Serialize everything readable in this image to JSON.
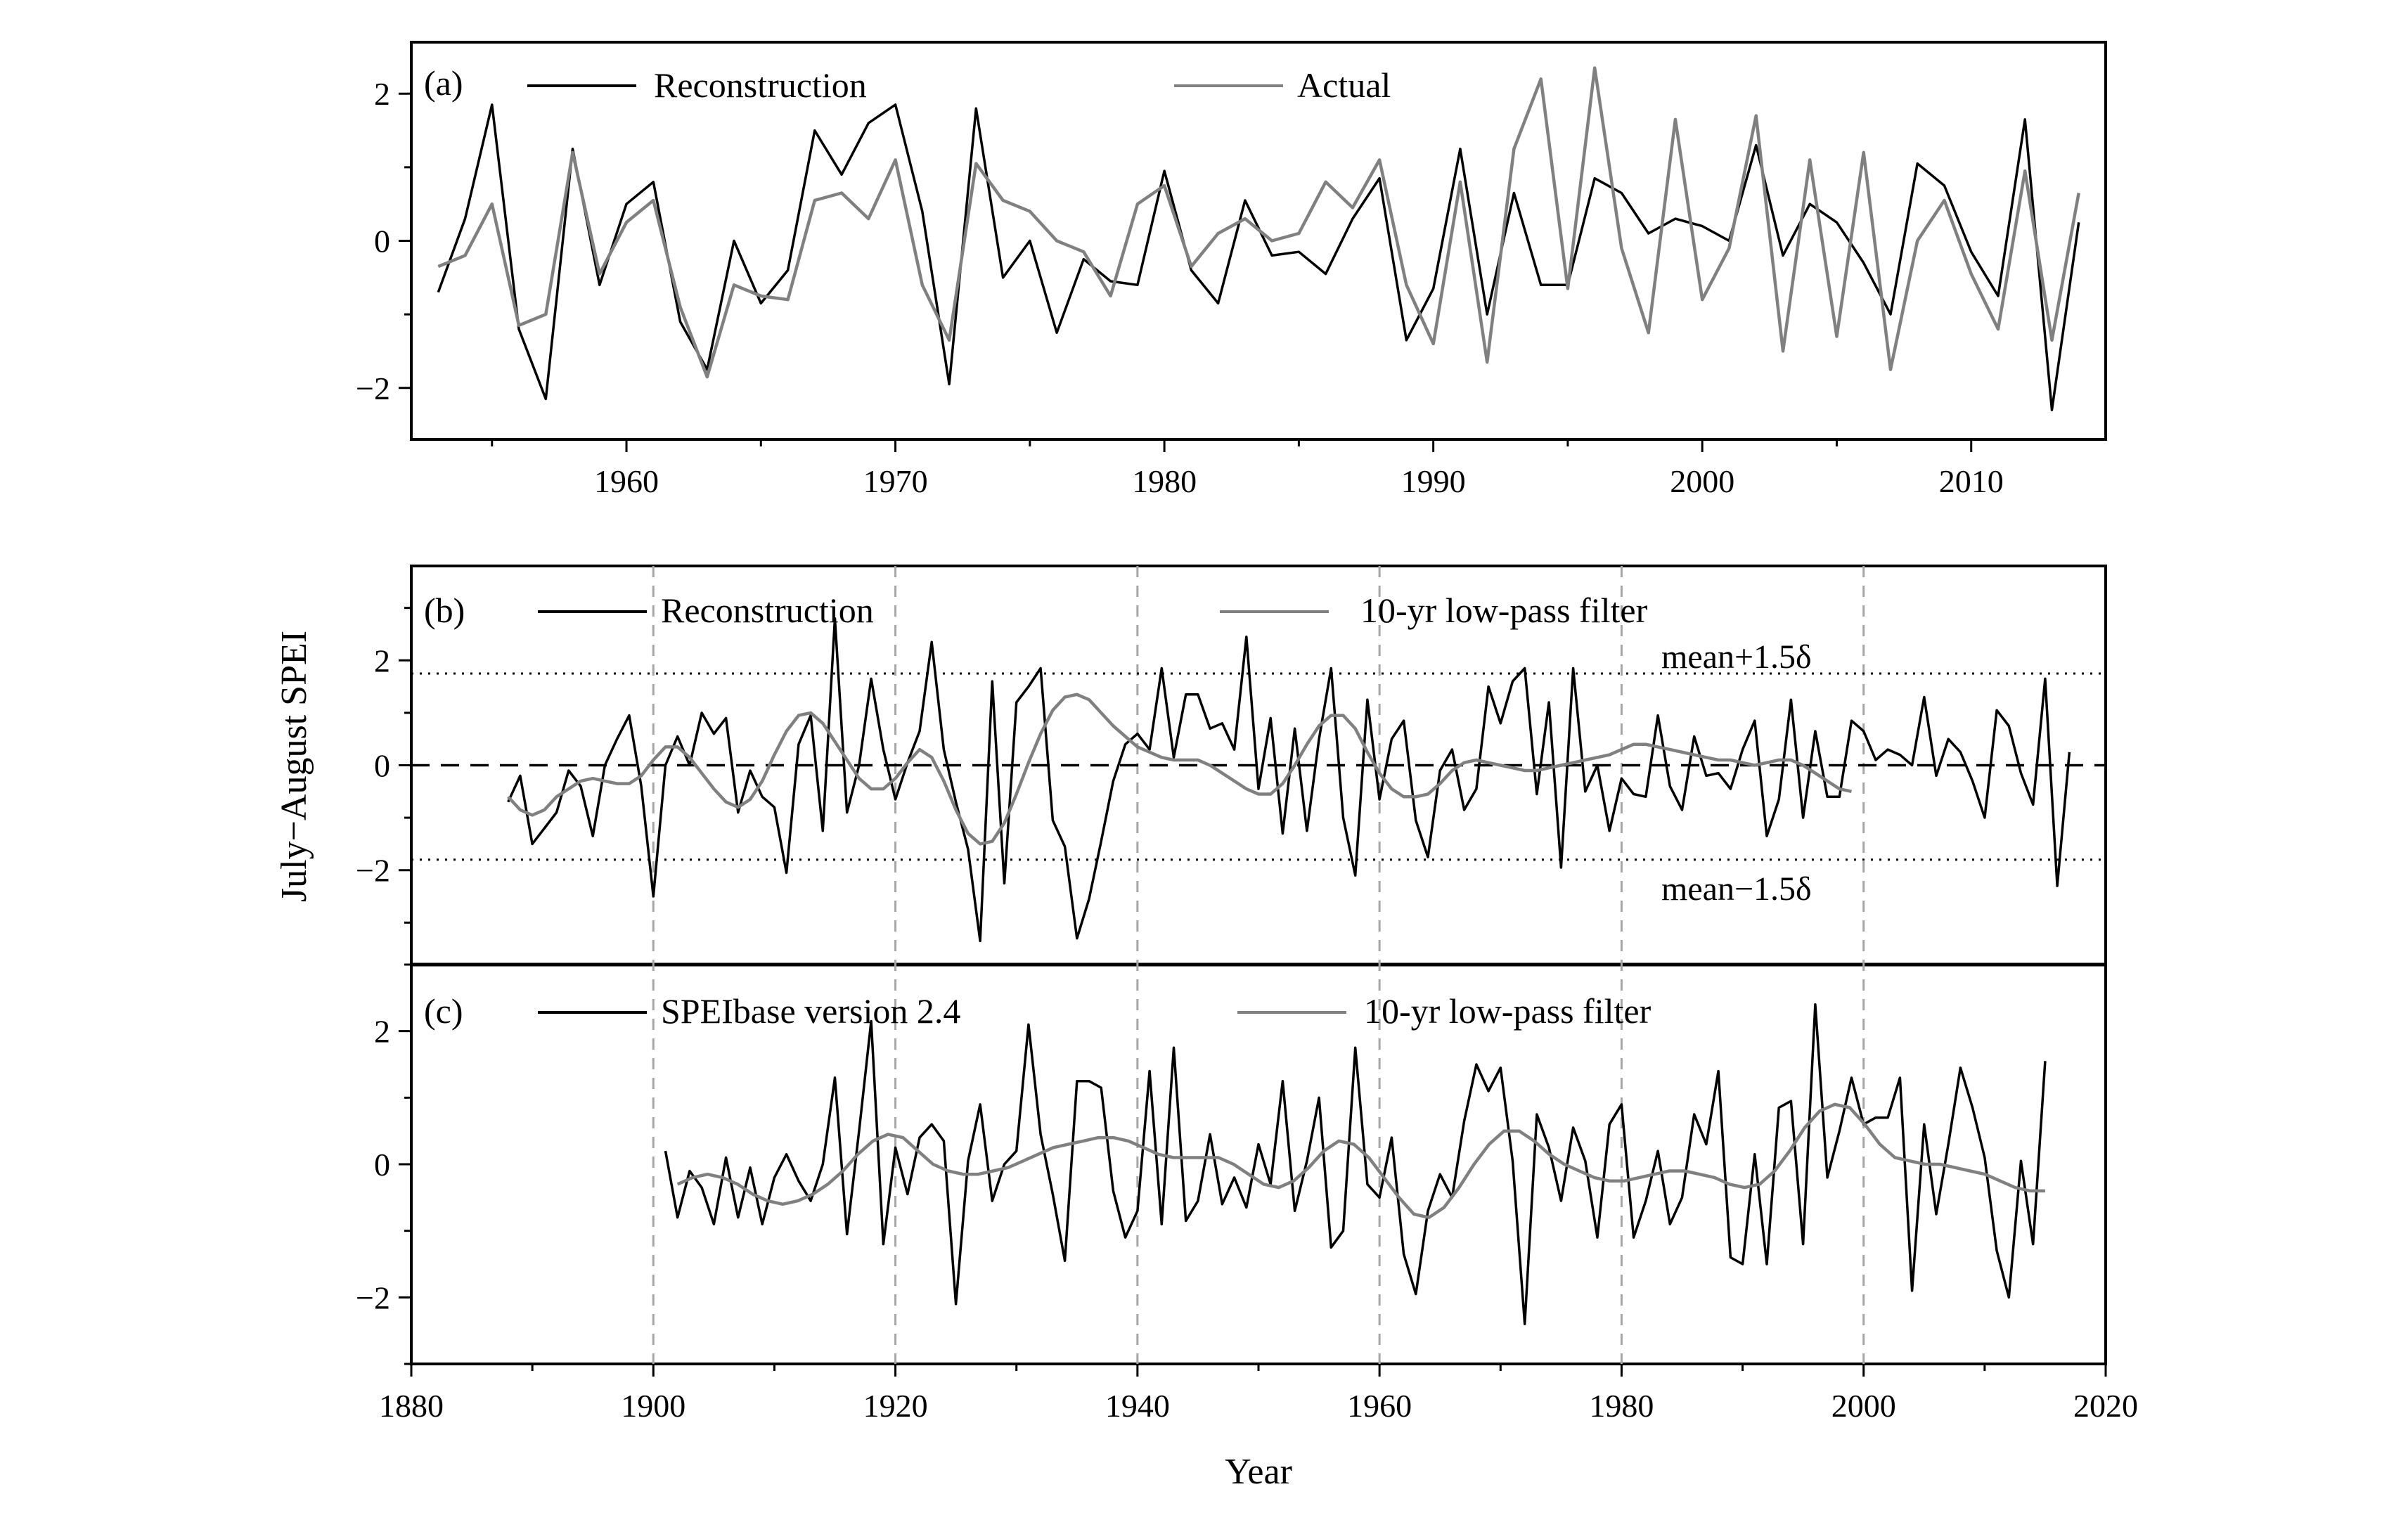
{
  "figure": {
    "ylabel": "July−August SPEI",
    "xlabel": "Year",
    "colors": {
      "black": "#000000",
      "gray": "#808080",
      "grid": "#a6a6a6"
    }
  },
  "chart_data": [
    {
      "type": "line",
      "panel": "(a)",
      "xlim": [
        1952,
        2015
      ],
      "ylim": [
        -2.7,
        2.7
      ],
      "xticks": [
        1960,
        1970,
        1980,
        1990,
        2000,
        2010
      ],
      "yticks": [
        -2,
        0,
        2
      ],
      "x": [
        1953,
        1954,
        1955,
        1956,
        1957,
        1958,
        1959,
        1960,
        1961,
        1962,
        1963,
        1964,
        1965,
        1966,
        1967,
        1968,
        1969,
        1970,
        1971,
        1972,
        1973,
        1974,
        1975,
        1976,
        1977,
        1978,
        1979,
        1980,
        1981,
        1982,
        1983,
        1984,
        1985,
        1986,
        1987,
        1988,
        1989,
        1990,
        1991,
        1992,
        1993,
        1994,
        1995,
        1996,
        1997,
        1998,
        1999,
        2000,
        2001,
        2002,
        2003,
        2004,
        2005,
        2006,
        2007,
        2008,
        2009,
        2010,
        2011,
        2012,
        2013,
        2014
      ],
      "series": [
        {
          "name": "Reconstruction",
          "color": "#000000",
          "values": [
            -0.7,
            0.3,
            1.85,
            -1.2,
            -2.15,
            1.25,
            -0.6,
            0.5,
            0.8,
            -1.1,
            -1.75,
            0.0,
            -0.85,
            -0.4,
            1.5,
            0.9,
            1.6,
            1.85,
            0.4,
            -1.95,
            1.8,
            -0.5,
            0.0,
            -1.25,
            -0.25,
            -0.55,
            -0.6,
            0.95,
            -0.4,
            -0.85,
            0.55,
            -0.2,
            -0.15,
            -0.45,
            0.3,
            0.85,
            -1.35,
            -0.65,
            1.25,
            -1.0,
            0.65,
            -0.6,
            -0.6,
            0.85,
            0.65,
            0.1,
            0.3,
            0.2,
            0.0,
            1.3,
            -0.2,
            0.5,
            0.25,
            -0.3,
            -1.0,
            1.05,
            0.75,
            -0.15,
            -0.75,
            1.65,
            -2.3,
            0.25
          ]
        },
        {
          "name": "Actual",
          "color": "#808080",
          "values": [
            -0.35,
            -0.2,
            0.5,
            -1.15,
            -1.0,
            1.2,
            -0.45,
            0.25,
            0.55,
            -0.9,
            -1.85,
            -0.6,
            -0.75,
            -0.8,
            0.55,
            0.65,
            0.3,
            1.1,
            -0.6,
            -1.35,
            1.05,
            0.55,
            0.4,
            0.0,
            -0.15,
            -0.75,
            0.5,
            0.75,
            -0.35,
            0.1,
            0.3,
            0.0,
            0.1,
            0.8,
            0.45,
            1.1,
            -0.6,
            -1.4,
            0.8,
            -1.65,
            1.25,
            2.2,
            -0.65,
            2.35,
            -0.1,
            -1.25,
            1.65,
            -0.8,
            -0.1,
            1.7,
            -1.5,
            1.1,
            -1.3,
            1.2,
            -1.75,
            0.0,
            0.55,
            -0.45,
            -1.2,
            0.95,
            -1.35,
            0.65
          ]
        }
      ],
      "legend": [
        "Reconstruction",
        "Actual"
      ]
    },
    {
      "type": "line",
      "panel": "(b)",
      "xlim": [
        1880,
        2020
      ],
      "ylim": [
        -3.8,
        3.8
      ],
      "yticks": [
        -2,
        0,
        2
      ],
      "x_start": 1888,
      "series": [
        {
          "name": "Reconstruction",
          "color": "#000000",
          "values": [
            -0.7,
            -0.2,
            -1.5,
            -1.2,
            -0.9,
            -0.1,
            -0.4,
            -1.35,
            0.0,
            0.5,
            0.95,
            -0.4,
            -2.5,
            0.0,
            0.55,
            0.0,
            1.0,
            0.6,
            0.9,
            -0.9,
            -0.1,
            -0.6,
            -0.8,
            -2.05,
            0.4,
            0.95,
            -1.25,
            2.8,
            -0.9,
            0.0,
            1.65,
            0.3,
            -0.65,
            0.05,
            0.65,
            2.35,
            0.3,
            -0.7,
            -1.6,
            -3.35,
            1.6,
            -2.25,
            1.2,
            1.5,
            1.85,
            -1.05,
            -1.55,
            -3.3,
            -2.55,
            -1.45,
            -0.3,
            0.4,
            0.6,
            0.3,
            1.85,
            0.15,
            1.35,
            1.35,
            0.7,
            0.8,
            0.3,
            2.45,
            -0.45,
            0.9,
            -1.3,
            0.7,
            -1.25,
            0.5,
            1.85,
            -1.0,
            -2.1,
            1.25,
            -0.65,
            0.5,
            0.85,
            -1.05,
            -1.75,
            -0.1,
            0.3,
            -0.85,
            -0.45,
            1.5,
            0.8,
            1.6,
            1.85,
            -0.55,
            1.2,
            -1.95,
            1.85,
            -0.5,
            0.0,
            -1.25,
            -0.25,
            -0.55,
            -0.6,
            0.95,
            -0.4,
            -0.85,
            0.55,
            -0.2,
            -0.15,
            -0.45,
            0.3,
            0.85,
            -1.35,
            -0.65,
            1.25,
            -1.0,
            0.65,
            -0.6,
            -0.6,
            0.85,
            0.65,
            0.1,
            0.3,
            0.2,
            0.0,
            1.3,
            -0.2,
            0.5,
            0.25,
            -0.3,
            -1.0,
            1.05,
            0.75,
            -0.15,
            -0.75,
            1.65,
            -2.3,
            0.25
          ]
        },
        {
          "name": "10-yr low-pass filter",
          "color": "#808080",
          "values": [
            -0.6,
            -0.85,
            -0.95,
            -0.85,
            -0.6,
            -0.45,
            -0.3,
            -0.25,
            -0.3,
            -0.35,
            -0.35,
            -0.2,
            0.1,
            0.35,
            0.35,
            0.15,
            -0.15,
            -0.45,
            -0.7,
            -0.8,
            -0.65,
            -0.3,
            0.2,
            0.65,
            0.95,
            1.0,
            0.8,
            0.45,
            0.1,
            -0.25,
            -0.45,
            -0.45,
            -0.25,
            0.05,
            0.3,
            0.15,
            -0.3,
            -0.85,
            -1.3,
            -1.5,
            -1.45,
            -1.1,
            -0.55,
            0.05,
            0.6,
            1.05,
            1.3,
            1.35,
            1.25,
            1.0,
            0.75,
            0.55,
            0.35,
            0.25,
            0.15,
            0.1,
            0.1,
            0.1,
            0.0,
            -0.15,
            -0.3,
            -0.45,
            -0.55,
            -0.55,
            -0.35,
            0.0,
            0.4,
            0.75,
            0.95,
            0.95,
            0.7,
            0.25,
            -0.15,
            -0.45,
            -0.6,
            -0.6,
            -0.55,
            -0.35,
            -0.1,
            0.05,
            0.1,
            0.05,
            0.0,
            -0.05,
            -0.1,
            -0.1,
            -0.05,
            0.0,
            0.05,
            0.1,
            0.15,
            0.2,
            0.3,
            0.4,
            0.4,
            0.35,
            0.3,
            0.25,
            0.2,
            0.15,
            0.1,
            0.1,
            0.05,
            0.0,
            0.05,
            0.1,
            0.1,
            0.0,
            -0.15,
            -0.3,
            -0.45,
            -0.5
          ]
        }
      ],
      "filter_x_start": 1888,
      "thresholds": {
        "upper": 1.75,
        "lower": -1.8,
        "upper_label": "mean+1.5δ",
        "lower_label": "mean−1.5δ"
      },
      "legend": [
        "Reconstruction",
        "10-yr low-pass filter"
      ]
    },
    {
      "type": "line",
      "panel": "(c)",
      "xlim": [
        1880,
        2020
      ],
      "ylim": [
        -3,
        3
      ],
      "xticks": [
        1880,
        1900,
        1920,
        1940,
        1960,
        1980,
        2000,
        2020
      ],
      "yticks": [
        -2,
        0,
        2
      ],
      "x_start": 1901,
      "series": [
        {
          "name": "SPEIbase version 2.4",
          "color": "#000000",
          "values": [
            0.2,
            -0.8,
            -0.1,
            -0.35,
            -0.9,
            0.1,
            -0.8,
            -0.05,
            -0.9,
            -0.2,
            0.15,
            -0.25,
            -0.55,
            0.0,
            1.3,
            -1.05,
            0.5,
            2.15,
            -1.2,
            0.25,
            -0.45,
            0.4,
            0.6,
            0.35,
            -2.1,
            0.05,
            0.9,
            -0.55,
            0.0,
            0.2,
            2.1,
            0.45,
            -0.45,
            -1.45,
            1.25,
            1.25,
            1.15,
            -0.4,
            -1.1,
            -0.7,
            1.4,
            -0.9,
            1.75,
            -0.85,
            -0.55,
            0.45,
            -0.6,
            -0.2,
            -0.65,
            0.3,
            -0.3,
            1.25,
            -0.7,
            0.05,
            1.0,
            -1.25,
            -1.0,
            1.75,
            -0.3,
            -0.5,
            0.4,
            -1.35,
            -1.95,
            -0.7,
            -0.15,
            -0.5,
            0.65,
            1.5,
            1.1,
            1.45,
            0.05,
            -2.4,
            0.75,
            0.25,
            -0.55,
            0.55,
            0.05,
            -1.1,
            0.6,
            0.9,
            -1.1,
            -0.55,
            0.2,
            -0.9,
            -0.5,
            0.75,
            0.3,
            1.4,
            -1.4,
            -1.5,
            0.15,
            -1.5,
            0.85,
            0.95,
            -1.2,
            2.4,
            -0.2,
            0.5,
            1.3,
            0.6,
            0.7,
            0.7,
            1.3,
            -1.9,
            0.6,
            -0.75,
            0.3,
            1.45,
            0.85,
            0.1,
            -1.3,
            -2.0,
            0.05,
            -1.2,
            1.55
          ]
        },
        {
          "name": "10-yr low-pass filter",
          "color": "#808080",
          "values": [
            -0.3,
            -0.2,
            -0.15,
            -0.2,
            -0.3,
            -0.45,
            -0.55,
            -0.6,
            -0.55,
            -0.45,
            -0.3,
            -0.1,
            0.15,
            0.35,
            0.45,
            0.4,
            0.2,
            0.0,
            -0.1,
            -0.15,
            -0.15,
            -0.1,
            -0.05,
            0.05,
            0.15,
            0.25,
            0.3,
            0.35,
            0.4,
            0.4,
            0.35,
            0.25,
            0.15,
            0.1,
            0.1,
            0.1,
            0.1,
            0.0,
            -0.15,
            -0.3,
            -0.35,
            -0.25,
            -0.05,
            0.2,
            0.35,
            0.3,
            0.1,
            -0.2,
            -0.5,
            -0.75,
            -0.8,
            -0.65,
            -0.35,
            0.0,
            0.3,
            0.5,
            0.5,
            0.35,
            0.15,
            0.0,
            -0.1,
            -0.2,
            -0.25,
            -0.25,
            -0.2,
            -0.15,
            -0.1,
            -0.1,
            -0.15,
            -0.2,
            -0.3,
            -0.35,
            -0.3,
            -0.1,
            0.2,
            0.55,
            0.8,
            0.9,
            0.85,
            0.6,
            0.3,
            0.1,
            0.05,
            0.0,
            0.0,
            -0.05,
            -0.1,
            -0.15,
            -0.25,
            -0.35,
            -0.4,
            -0.4
          ]
        }
      ],
      "filter_x_start": 1902,
      "legend": [
        "SPEIbase version 2.4",
        "10-yr low-pass filter"
      ]
    }
  ]
}
